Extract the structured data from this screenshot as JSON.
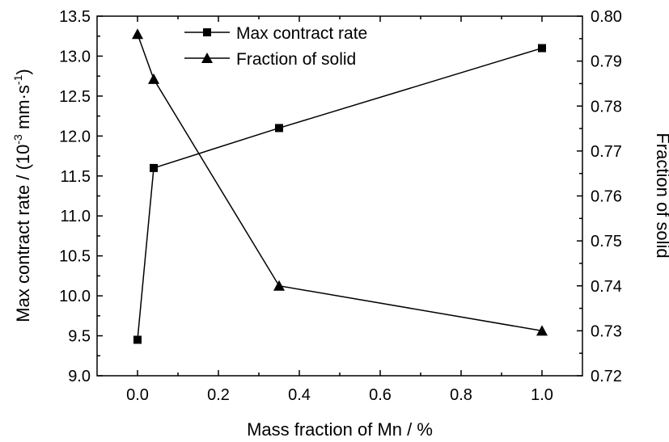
{
  "chart_data": {
    "type": "line",
    "x": [
      0.0,
      0.04,
      0.35,
      1.0
    ],
    "xlabel": "Mass fraction of Mn / %",
    "xlim": [
      -0.1,
      1.1
    ],
    "xticks": [
      "0.0",
      "0.2",
      "0.4",
      "0.6",
      "0.8",
      "1.0"
    ],
    "ylabel_left": {
      "main": "Max contract rate / (10",
      "sup1": "-3",
      "mid": " mm·s",
      "sup2": "-1",
      "end": ")"
    },
    "ylim_left": [
      9.0,
      13.5
    ],
    "yticks_left": [
      "9.0",
      "9.5",
      "10.0",
      "10.5",
      "11.0",
      "11.5",
      "12.0",
      "12.5",
      "13.0",
      "13.5"
    ],
    "ylabel_right": "Fraction of solid",
    "ylim_right": [
      0.72,
      0.8
    ],
    "yticks_right": [
      "0.72",
      "0.73",
      "0.74",
      "0.75",
      "0.76",
      "0.77",
      "0.78",
      "0.79",
      "0.80"
    ],
    "legend_position": "top",
    "series": [
      {
        "name": "Max contract rate",
        "marker": "square",
        "axis": "left",
        "values": [
          9.45,
          11.6,
          12.1,
          13.1
        ]
      },
      {
        "name": "Fraction of solid",
        "marker": "triangle",
        "axis": "right",
        "values": [
          0.796,
          0.786,
          0.74,
          0.73
        ]
      }
    ]
  }
}
